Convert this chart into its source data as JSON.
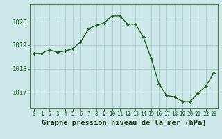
{
  "x": [
    0,
    1,
    2,
    3,
    4,
    5,
    6,
    7,
    8,
    9,
    10,
    11,
    12,
    13,
    14,
    15,
    16,
    17,
    18,
    19,
    20,
    21,
    22,
    23
  ],
  "y": [
    1018.65,
    1018.65,
    1018.8,
    1018.7,
    1018.75,
    1018.85,
    1019.15,
    1019.7,
    1019.85,
    1019.95,
    1020.25,
    1020.25,
    1019.9,
    1019.9,
    1019.35,
    1018.45,
    1017.35,
    1016.85,
    1016.8,
    1016.6,
    1016.6,
    1016.95,
    1017.25,
    1017.8
  ],
  "line_color": "#1a5c1a",
  "marker": "D",
  "marker_size": 2.2,
  "linewidth": 1.0,
  "bg_color": "#cce8e8",
  "plot_bg_color": "#cce8e8",
  "grid_color": "#aacccc",
  "xlabel": "Graphe pression niveau de la mer (hPa)",
  "xlabel_fontsize": 7.5,
  "ytick_labels": [
    "1017",
    "1018",
    "1019",
    "1020"
  ],
  "yticks": [
    1017,
    1018,
    1019,
    1020
  ],
  "ylim": [
    1016.3,
    1020.75
  ],
  "xlim": [
    -0.5,
    23.5
  ],
  "xtick_fontsize": 5.5,
  "ytick_fontsize": 6.5
}
